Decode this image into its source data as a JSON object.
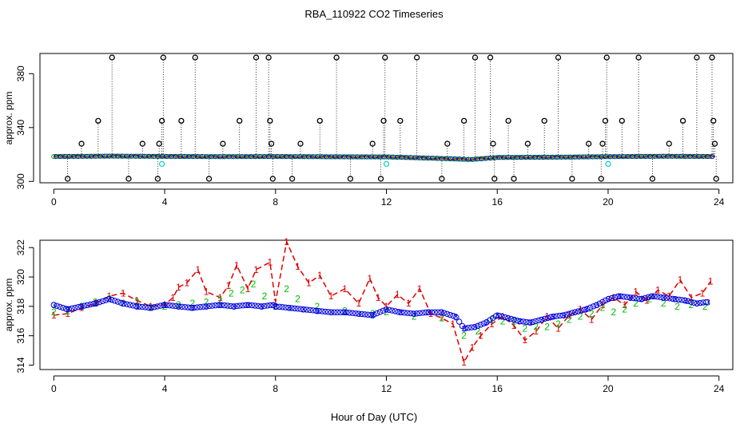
{
  "chart_data": {
    "type": "scatter",
    "title": "RBA_110922  CO2 Timeseries",
    "xlabel": "Hour of Day (UTC)",
    "panels": [
      {
        "name": "top",
        "ylabel": "approx. ppm",
        "xlim": [
          -0.5,
          24.5
        ],
        "ylim": [
          299,
          395
        ],
        "xticks": [
          0,
          4,
          8,
          12,
          16,
          20,
          24
        ],
        "yticks": [
          300,
          340,
          380
        ],
        "ytick_labels": [
          "300",
          "340",
          "380"
        ],
        "baseline": [
          [
            0,
            318.5
          ],
          [
            2,
            318.8
          ],
          [
            4,
            318.6
          ],
          [
            6,
            318.4
          ],
          [
            8,
            318.5
          ],
          [
            10,
            318.3
          ],
          [
            12,
            318.2
          ],
          [
            14,
            317.0
          ],
          [
            15,
            316.3
          ],
          [
            16,
            317.8
          ],
          [
            18,
            318.0
          ],
          [
            20,
            318.4
          ],
          [
            22,
            318.7
          ],
          [
            24,
            318.5
          ]
        ],
        "spikes": [
          {
            "x": 1.0,
            "y": 328
          },
          {
            "x": 1.6,
            "y": 345
          },
          {
            "x": 2.1,
            "y": 392
          },
          {
            "x": 3.2,
            "y": 328
          },
          {
            "x": 3.8,
            "y": 328
          },
          {
            "x": 3.9,
            "y": 345
          },
          {
            "x": 3.95,
            "y": 392
          },
          {
            "x": 4.6,
            "y": 345
          },
          {
            "x": 5.1,
            "y": 392
          },
          {
            "x": 6.1,
            "y": 328
          },
          {
            "x": 6.7,
            "y": 345
          },
          {
            "x": 7.3,
            "y": 392
          },
          {
            "x": 7.75,
            "y": 392
          },
          {
            "x": 7.8,
            "y": 345
          },
          {
            "x": 7.85,
            "y": 328
          },
          {
            "x": 8.9,
            "y": 328
          },
          {
            "x": 9.6,
            "y": 345
          },
          {
            "x": 10.2,
            "y": 392
          },
          {
            "x": 11.5,
            "y": 328
          },
          {
            "x": 11.9,
            "y": 345
          },
          {
            "x": 11.95,
            "y": 392
          },
          {
            "x": 12.5,
            "y": 345
          },
          {
            "x": 13.1,
            "y": 392
          },
          {
            "x": 14.2,
            "y": 328
          },
          {
            "x": 14.8,
            "y": 345
          },
          {
            "x": 15.2,
            "y": 392
          },
          {
            "x": 15.75,
            "y": 392
          },
          {
            "x": 15.85,
            "y": 328
          },
          {
            "x": 16.4,
            "y": 345
          },
          {
            "x": 17.1,
            "y": 328
          },
          {
            "x": 17.7,
            "y": 345
          },
          {
            "x": 18.2,
            "y": 392
          },
          {
            "x": 19.3,
            "y": 328
          },
          {
            "x": 19.8,
            "y": 328
          },
          {
            "x": 19.9,
            "y": 345
          },
          {
            "x": 19.95,
            "y": 392
          },
          {
            "x": 20.5,
            "y": 345
          },
          {
            "x": 21.1,
            "y": 392
          },
          {
            "x": 22.2,
            "y": 328
          },
          {
            "x": 22.7,
            "y": 345
          },
          {
            "x": 23.2,
            "y": 392
          },
          {
            "x": 23.75,
            "y": 392
          },
          {
            "x": 23.8,
            "y": 345
          },
          {
            "x": 23.85,
            "y": 328
          }
        ],
        "dips": [
          {
            "x": 0.5,
            "y": 302
          },
          {
            "x": 2.7,
            "y": 302
          },
          {
            "x": 3.75,
            "y": 302
          },
          {
            "x": 5.6,
            "y": 302
          },
          {
            "x": 7.9,
            "y": 302
          },
          {
            "x": 8.6,
            "y": 302
          },
          {
            "x": 10.7,
            "y": 302
          },
          {
            "x": 11.8,
            "y": 302
          },
          {
            "x": 14.0,
            "y": 302
          },
          {
            "x": 15.9,
            "y": 302
          },
          {
            "x": 16.6,
            "y": 302
          },
          {
            "x": 18.7,
            "y": 302
          },
          {
            "x": 19.75,
            "y": 302
          },
          {
            "x": 21.6,
            "y": 302
          },
          {
            "x": 23.9,
            "y": 302
          }
        ],
        "cyan_points": [
          {
            "x": 3.9,
            "y": 313
          },
          {
            "x": 12.0,
            "y": 313
          },
          {
            "x": 20.0,
            "y": 313
          }
        ]
      },
      {
        "name": "bottom",
        "ylabel": "approx. ppm",
        "xlim": [
          -0.5,
          24.5
        ],
        "ylim": [
          313.7,
          322.5
        ],
        "xticks": [
          0,
          4,
          8,
          12,
          16,
          20,
          24
        ],
        "yticks": [
          314,
          316,
          318,
          320,
          322
        ],
        "ytick_labels": [
          "314",
          "316",
          "318",
          "320",
          "322"
        ],
        "series": [
          {
            "name": "1",
            "color": "#dd0000",
            "linestyle": "dashed",
            "points": [
              [
                0,
                317.4
              ],
              [
                0.5,
                317.5
              ],
              [
                1,
                317.9
              ],
              [
                1.5,
                318.2
              ],
              [
                2.0,
                318.7
              ],
              [
                2.5,
                318.9
              ],
              [
                3.0,
                318.4
              ],
              [
                3.5,
                318.0
              ],
              [
                4.0,
                318.1
              ],
              [
                4.3,
                318.6
              ],
              [
                4.5,
                319.3
              ],
              [
                4.8,
                319.6
              ],
              [
                5.2,
                320.5
              ],
              [
                5.5,
                319.0
              ],
              [
                6.0,
                318.6
              ],
              [
                6.3,
                319.4
              ],
              [
                6.6,
                320.8
              ],
              [
                7.0,
                319.2
              ],
              [
                7.3,
                320.5
              ],
              [
                7.8,
                321.0
              ],
              [
                8.0,
                318.3
              ],
              [
                8.4,
                322.4
              ],
              [
                8.8,
                320.7
              ],
              [
                9.2,
                319.6
              ],
              [
                9.6,
                320.1
              ],
              [
                10.0,
                318.7
              ],
              [
                10.5,
                319.2
              ],
              [
                11.0,
                318.2
              ],
              [
                11.4,
                319.9
              ],
              [
                11.7,
                318.6
              ],
              [
                12.0,
                318.0
              ],
              [
                12.4,
                318.8
              ],
              [
                12.8,
                318.2
              ],
              [
                13.2,
                319.2
              ],
              [
                13.6,
                317.5
              ],
              [
                14.0,
                317.2
              ],
              [
                14.4,
                316.8
              ],
              [
                14.8,
                314.2
              ],
              [
                15.1,
                315.2
              ],
              [
                15.4,
                316.0
              ],
              [
                15.8,
                316.8
              ],
              [
                16.2,
                317.3
              ],
              [
                16.6,
                316.7
              ],
              [
                17.0,
                315.7
              ],
              [
                17.4,
                316.3
              ],
              [
                17.8,
                317.3
              ],
              [
                18.2,
                316.5
              ],
              [
                18.6,
                317.4
              ],
              [
                19.0,
                317.8
              ],
              [
                19.4,
                317.1
              ],
              [
                19.8,
                318.1
              ],
              [
                20.2,
                318.6
              ],
              [
                20.6,
                318.1
              ],
              [
                21.0,
                319.0
              ],
              [
                21.4,
                318.4
              ],
              [
                21.8,
                319.1
              ],
              [
                22.2,
                318.7
              ],
              [
                22.6,
                319.8
              ],
              [
                23.0,
                318.6
              ],
              [
                23.4,
                318.9
              ],
              [
                23.7,
                319.7
              ]
            ]
          },
          {
            "name": "2",
            "color": "#00bb00",
            "points": [
              [
                0,
                317.6
              ],
              [
                0.5,
                317.7
              ],
              [
                1,
                318.0
              ],
              [
                1.5,
                318.3
              ],
              [
                2.0,
                318.5
              ],
              [
                2.5,
                318.2
              ],
              [
                3.0,
                318.3
              ],
              [
                3.5,
                317.9
              ],
              [
                4.0,
                318.0
              ],
              [
                4.5,
                318.1
              ],
              [
                5.0,
                318.2
              ],
              [
                5.5,
                318.3
              ],
              [
                6.0,
                318.4
              ],
              [
                6.4,
                318.9
              ],
              [
                6.8,
                319.1
              ],
              [
                7.2,
                319.5
              ],
              [
                7.6,
                318.7
              ],
              [
                8.0,
                318.0
              ],
              [
                8.4,
                319.2
              ],
              [
                8.8,
                318.5
              ],
              [
                9.5,
                318.0
              ],
              [
                10.5,
                317.7
              ],
              [
                11.5,
                317.5
              ],
              [
                12.0,
                317.6
              ],
              [
                13.0,
                317.3
              ],
              [
                14.0,
                317.2
              ],
              [
                14.8,
                316.0
              ],
              [
                15.3,
                316.3
              ],
              [
                15.8,
                317.1
              ],
              [
                16.2,
                317.0
              ],
              [
                16.6,
                317.0
              ],
              [
                17.0,
                316.5
              ],
              [
                17.4,
                316.6
              ],
              [
                17.8,
                316.6
              ],
              [
                18.2,
                316.8
              ],
              [
                18.6,
                317.1
              ],
              [
                19.0,
                317.3
              ],
              [
                19.4,
                317.5
              ],
              [
                19.8,
                317.9
              ],
              [
                20.2,
                317.6
              ],
              [
                20.6,
                317.8
              ],
              [
                21.0,
                318.2
              ],
              [
                21.5,
                318.5
              ],
              [
                22.0,
                318.2
              ],
              [
                22.5,
                318.0
              ],
              [
                23.0,
                318.1
              ],
              [
                23.5,
                318.0
              ]
            ]
          },
          {
            "name": "3",
            "color": "#0000dd",
            "points": [
              [
                0,
                318.1
              ],
              [
                0.5,
                317.8
              ],
              [
                1,
                318.0
              ],
              [
                1.5,
                318.2
              ],
              [
                2.0,
                318.5
              ],
              [
                2.5,
                318.2
              ],
              [
                3.0,
                318.0
              ],
              [
                3.5,
                317.9
              ],
              [
                4.0,
                318.1
              ],
              [
                4.5,
                318.0
              ],
              [
                5.0,
                317.9
              ],
              [
                5.5,
                318.0
              ],
              [
                6.0,
                318.1
              ],
              [
                6.5,
                318.0
              ],
              [
                7.0,
                318.1
              ],
              [
                7.5,
                318.0
              ],
              [
                7.9,
                318.1
              ],
              [
                8.0,
                318.0
              ],
              [
                8.5,
                317.9
              ],
              [
                9.0,
                317.8
              ],
              [
                9.5,
                317.7
              ],
              [
                10.0,
                317.6
              ],
              [
                10.5,
                317.6
              ],
              [
                11.0,
                317.5
              ],
              [
                11.5,
                317.4
              ],
              [
                12.0,
                317.8
              ],
              [
                12.5,
                317.6
              ],
              [
                13.0,
                317.5
              ],
              [
                13.5,
                317.6
              ],
              [
                14.0,
                317.6
              ],
              [
                14.5,
                317.3
              ],
              [
                14.8,
                316.5
              ],
              [
                15.2,
                316.6
              ],
              [
                15.6,
                316.9
              ],
              [
                16.0,
                317.4
              ],
              [
                16.4,
                317.2
              ],
              [
                16.8,
                317.0
              ],
              [
                17.2,
                316.9
              ],
              [
                17.6,
                317.1
              ],
              [
                18.0,
                317.3
              ],
              [
                18.4,
                317.4
              ],
              [
                18.8,
                317.6
              ],
              [
                19.2,
                317.8
              ],
              [
                19.6,
                318.1
              ],
              [
                20.0,
                318.5
              ],
              [
                20.4,
                318.7
              ],
              [
                20.8,
                318.6
              ],
              [
                21.2,
                318.5
              ],
              [
                21.6,
                318.7
              ],
              [
                22.0,
                318.6
              ],
              [
                22.4,
                318.5
              ],
              [
                22.8,
                318.4
              ],
              [
                23.2,
                318.2
              ],
              [
                23.6,
                318.3
              ]
            ]
          }
        ]
      }
    ]
  }
}
